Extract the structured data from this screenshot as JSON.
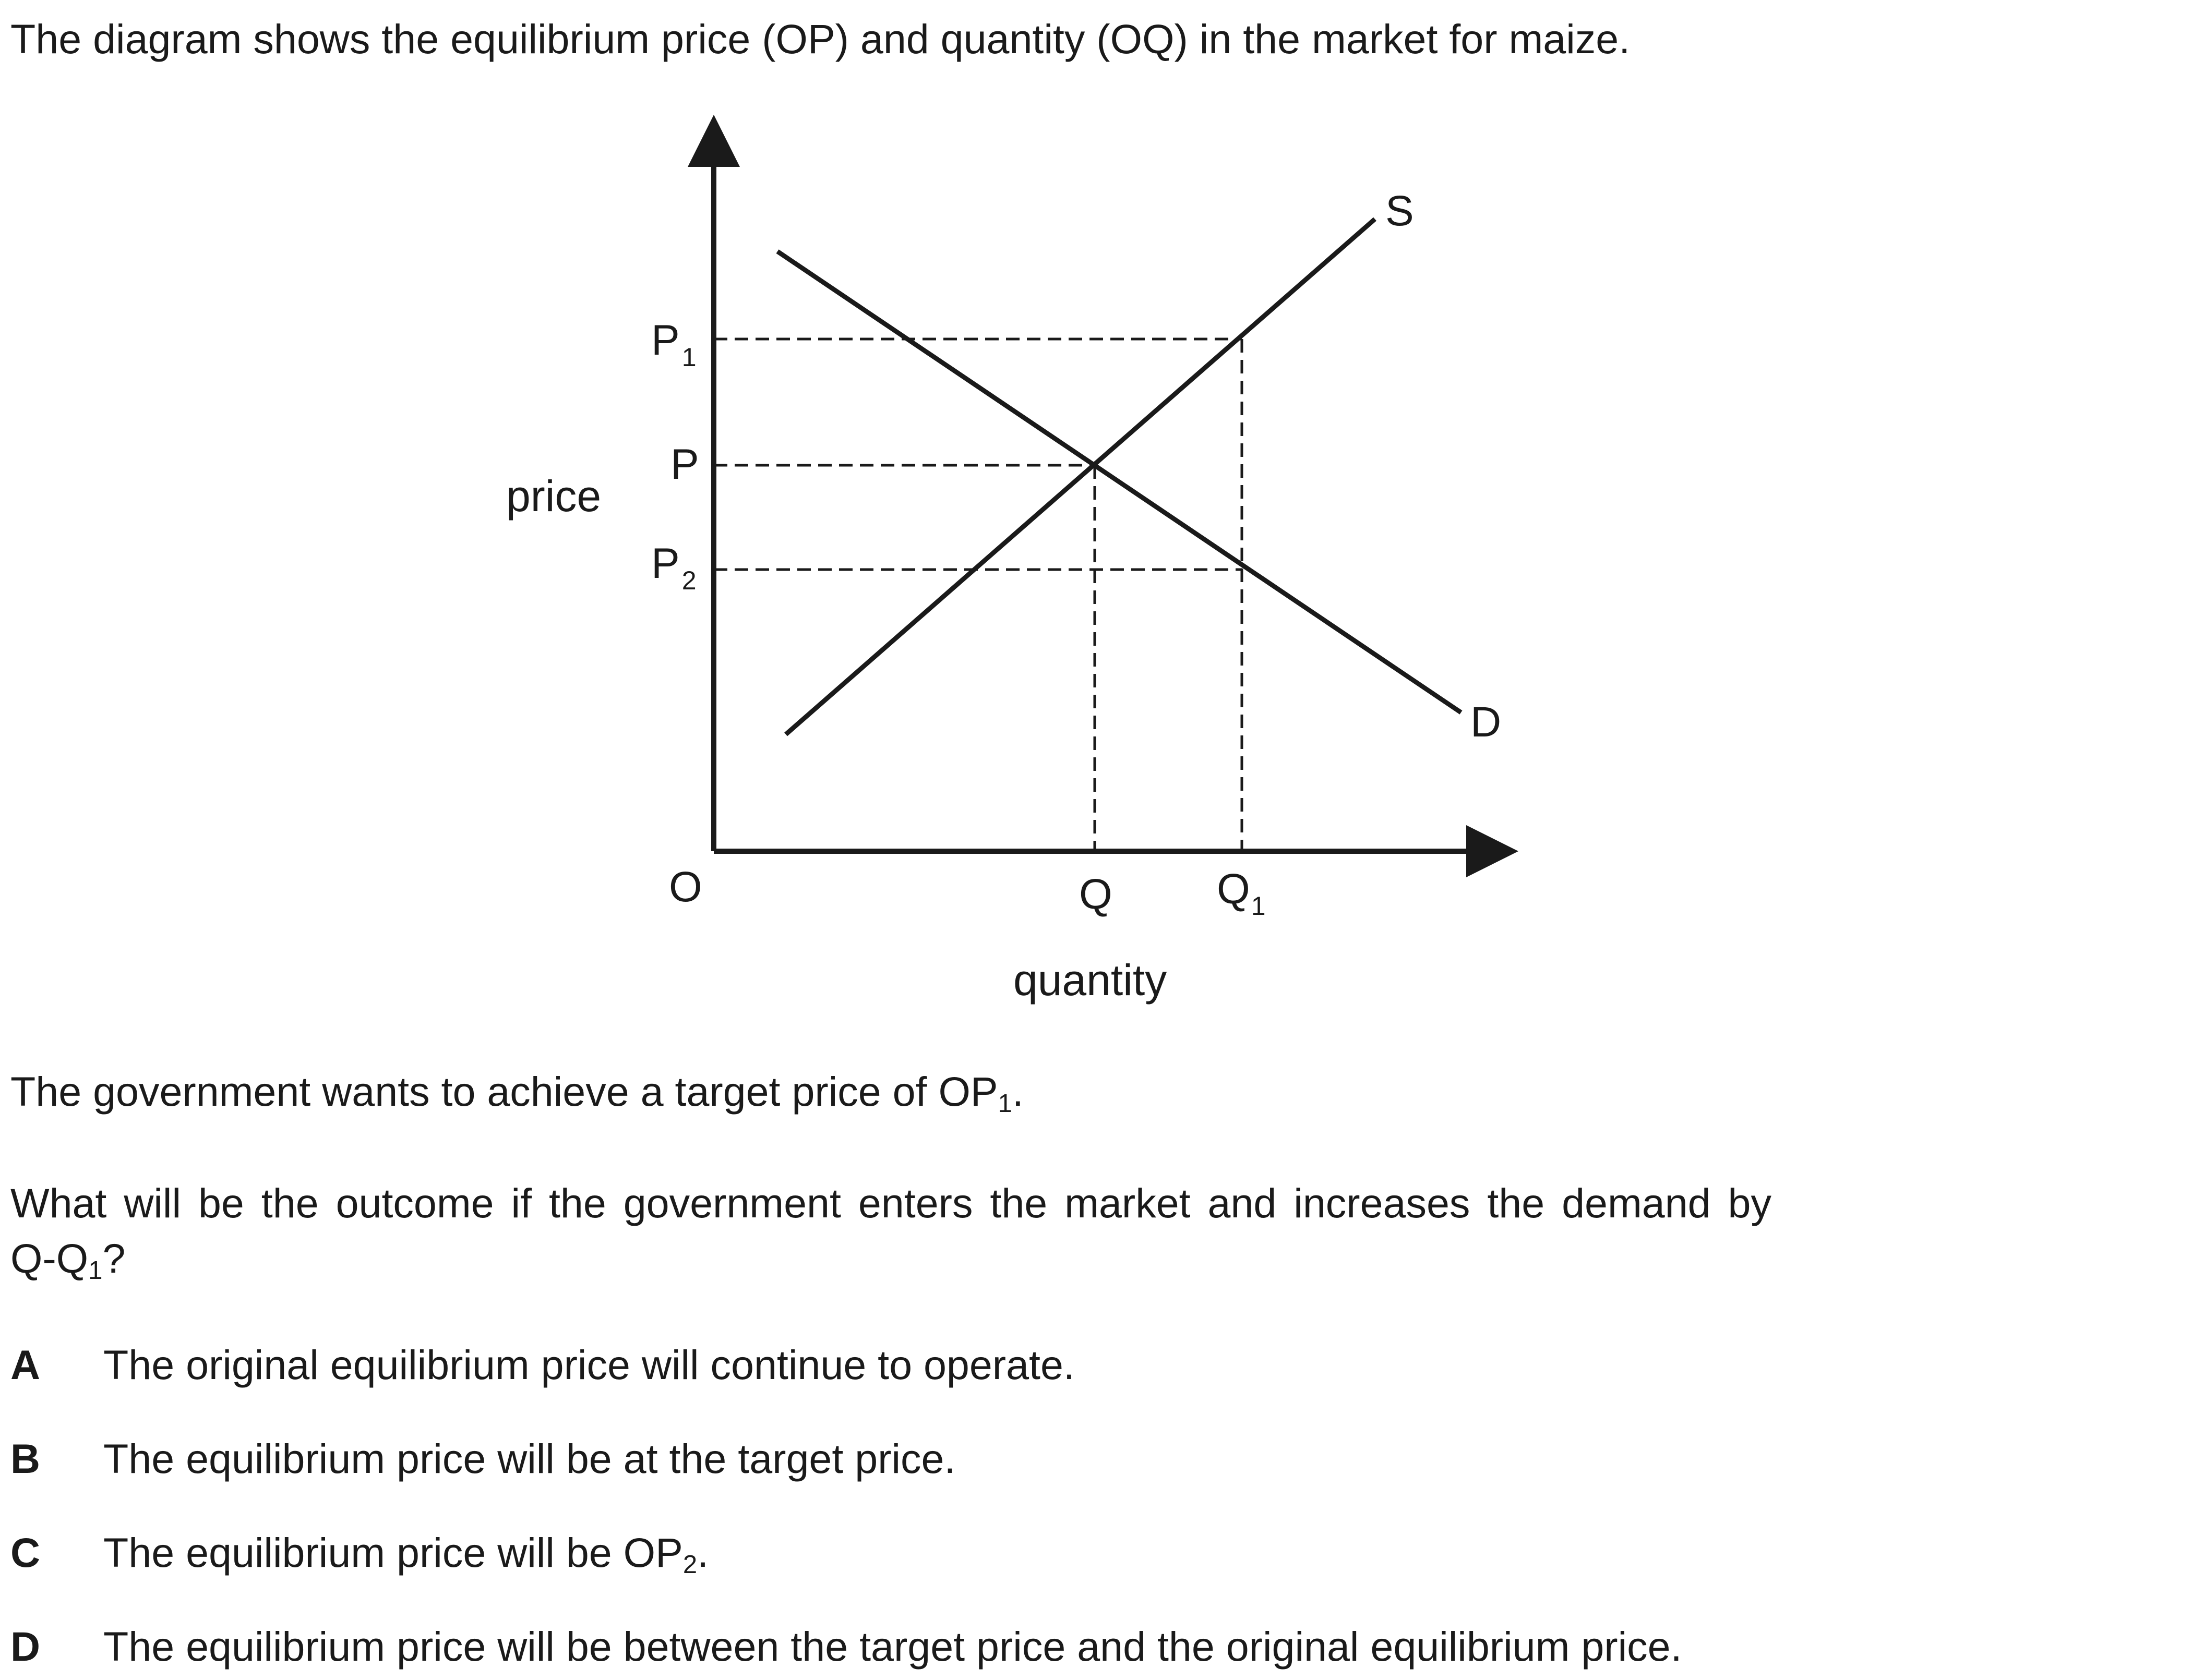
{
  "intro": "The diagram shows the equilibrium price (OP) and quantity (OQ) in the market for maize.",
  "diagram": {
    "y_axis_label": "price",
    "x_axis_label": "quantity",
    "origin_label": "O",
    "price_labels": {
      "p1_main": "P",
      "p1_sub": "1",
      "p": "P",
      "p2_main": "P",
      "p2_sub": "2"
    },
    "quantity_labels": {
      "q": "Q",
      "q1_main": "Q",
      "q1_sub": "1"
    },
    "supply_label": "S",
    "demand_label": "D"
  },
  "target_text": {
    "main": "The government wants to achieve a target price of OP",
    "sub": "1",
    "end": "."
  },
  "question": {
    "line1": "What will be the outcome if the government enters the market and increases the demand by",
    "line2_main": "Q-Q",
    "line2_sub": "1",
    "line2_end": "?"
  },
  "options": [
    {
      "letter": "A",
      "text": "The original equilibrium price will continue to operate."
    },
    {
      "letter": "B",
      "text": "The equilibrium price will be at the target price."
    },
    {
      "letter": "C",
      "text_main": "The equilibrium price will be OP",
      "text_sub": "2",
      "text_end": "."
    },
    {
      "letter": "D",
      "text": "The equilibrium price will be between the target price and the original equilibrium price."
    }
  ]
}
